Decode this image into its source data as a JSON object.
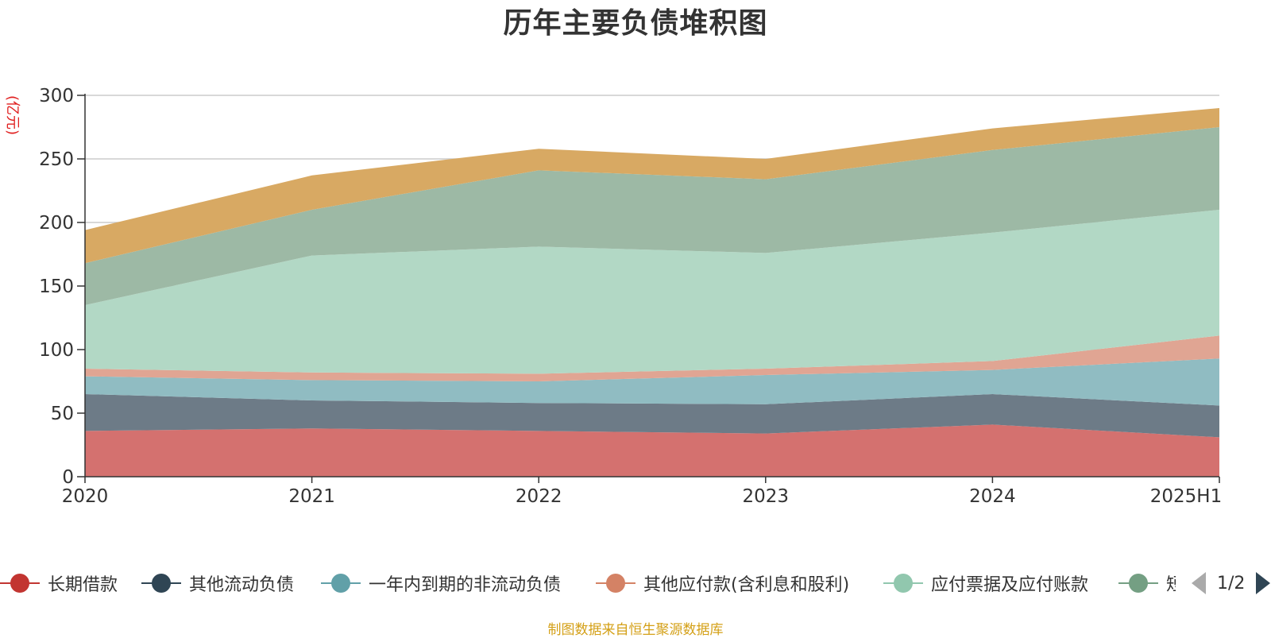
{
  "title": "历年主要负债堆积图",
  "unit_label": "(亿元)",
  "source_text": "制图数据来自恒生聚源数据库",
  "legend_page": "1/2",
  "chart_data": {
    "type": "area",
    "stacked": true,
    "categories": [
      "2020",
      "2021",
      "2022",
      "2023",
      "2024",
      "2025H1"
    ],
    "ylim": [
      0,
      300
    ],
    "yticks": [
      0,
      50,
      100,
      150,
      200,
      250,
      300
    ],
    "grid": true,
    "legend_position": "bottom",
    "series": [
      {
        "name": "长期借款",
        "color": "#c23531",
        "fill": "#d4716f",
        "values": [
          36,
          38,
          36,
          34,
          41,
          31
        ]
      },
      {
        "name": "其他流动负债",
        "color": "#2f4554",
        "fill": "#6d7b87",
        "values": [
          29,
          22,
          22,
          23,
          24,
          25
        ]
      },
      {
        "name": "一年内到期的非流动负债",
        "color": "#61a0a8",
        "fill": "#90bcc2",
        "values": [
          14,
          16,
          17,
          23,
          19,
          37
        ]
      },
      {
        "name": "其他应付款(含利息和股利)",
        "color": "#d48265",
        "fill": "#e0a593",
        "values": [
          6,
          6,
          6,
          5,
          7,
          18
        ]
      },
      {
        "name": "应付票据及应付账款",
        "color": "#91c7ae",
        "fill": "#b2d8c5",
        "values": [
          50,
          92,
          100,
          91,
          101,
          99
        ]
      },
      {
        "name": "短",
        "color": "#749f83",
        "fill": "#9db9a5",
        "values": [
          33,
          36,
          60,
          58,
          65,
          65
        ]
      },
      {
        "name": "",
        "color": "#ca8622",
        "fill": "#d8a963",
        "values": [
          26,
          27,
          17,
          16,
          17,
          15
        ]
      }
    ]
  }
}
